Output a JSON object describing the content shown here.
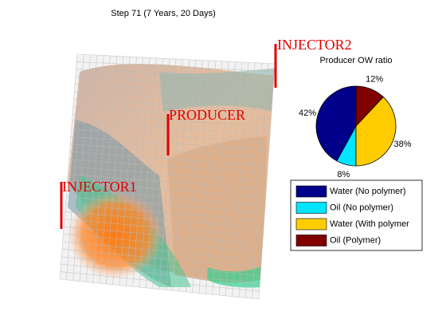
{
  "figure_title": "Step 71 (7 Years, 20 Days)",
  "wells": [
    "INJECTOR2",
    "PRODUCER",
    "INJECTOR1"
  ],
  "chart_data": {
    "type": "pie",
    "title": "Producer OW ratio",
    "categories": [
      "Water (No polymer)",
      "Oil (No polymer)",
      "Water (With polymer",
      "Oil (Polymer)"
    ],
    "values": [
      42,
      8,
      38,
      12
    ],
    "value_labels": [
      "42%",
      "8%",
      "38%",
      "12%"
    ],
    "colors": [
      "#00008b",
      "#00e5ff",
      "#ffcc00",
      "#800000"
    ],
    "legend": "below"
  }
}
